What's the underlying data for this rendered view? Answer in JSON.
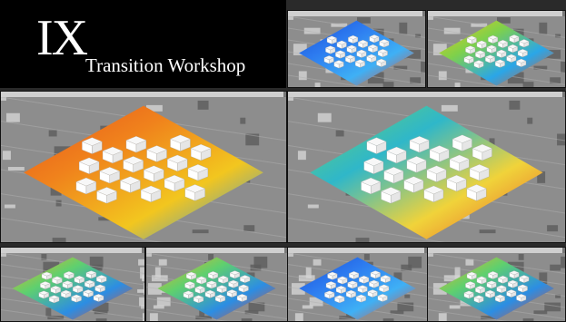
{
  "title": {
    "numeral": "IX",
    "subtitle": "Transition Workshop"
  },
  "viewports": [
    {
      "label": "",
      "palette": "blue"
    },
    {
      "label": "",
      "palette": "yellow"
    },
    {
      "label": "",
      "palette": "red"
    },
    {
      "label": "",
      "palette": "green"
    },
    {
      "label": "",
      "palette": "mixed"
    },
    {
      "label": "",
      "palette": "mixed"
    },
    {
      "label": "",
      "palette": "blue"
    },
    {
      "label": "",
      "palette": "mixed"
    }
  ],
  "icons": {
    "viewport_close": "close-icon"
  }
}
